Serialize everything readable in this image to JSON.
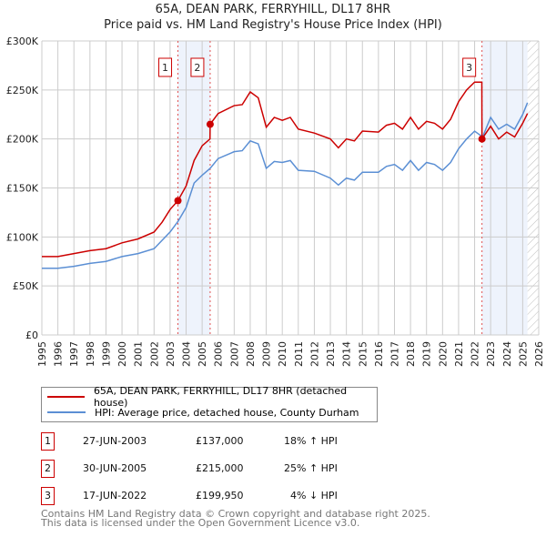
{
  "title": "65A, DEAN PARK, FERRYHILL, DL17 8HR",
  "subtitle": "Price paid vs. HM Land Registry's House Price Index (HPI)",
  "chart_data": {
    "type": "line",
    "title": "65A, DEAN PARK, FERRYHILL, DL17 8HR",
    "subtitle": "Price paid vs. HM Land Registry's House Price Index (HPI)",
    "xlim": [
      1995,
      2026
    ],
    "ylim": [
      0,
      300000
    ],
    "x_ticks": [
      "1995",
      "1996",
      "1997",
      "1998",
      "1999",
      "2000",
      "2001",
      "2002",
      "2003",
      "2004",
      "2005",
      "2006",
      "2007",
      "2008",
      "2009",
      "2010",
      "2011",
      "2012",
      "2013",
      "2014",
      "2015",
      "2016",
      "2017",
      "2018",
      "2019",
      "2020",
      "2021",
      "2022",
      "2023",
      "2024",
      "2025",
      "2026"
    ],
    "y_ticks": [
      {
        "v": 0,
        "label": "£0"
      },
      {
        "v": 50000,
        "label": "£50K"
      },
      {
        "v": 100000,
        "label": "£100K"
      },
      {
        "v": 150000,
        "label": "£150K"
      },
      {
        "v": 200000,
        "label": "£200K"
      },
      {
        "v": 250000,
        "label": "£250K"
      },
      {
        "v": 300000,
        "label": "£300K"
      }
    ],
    "grid": true,
    "legend_position": "below",
    "series": [
      {
        "name": "65A, DEAN PARK, FERRYHILL, DL17 8HR (detached house)",
        "color": "#cc0000",
        "x": [
          1995,
          1996,
          1997,
          1998,
          1999,
          2000,
          2001,
          2002,
          2002.5,
          2003,
          2003.49,
          2004,
          2004.5,
          2005,
          2005.49,
          2005.5,
          2006,
          2007,
          2007.5,
          2008,
          2008.5,
          2009,
          2009.5,
          2010,
          2010.5,
          2011,
          2012,
          2013,
          2013.5,
          2014,
          2014.5,
          2015,
          2016,
          2016.5,
          2017,
          2017.5,
          2018,
          2018.5,
          2019,
          2019.5,
          2020,
          2020.5,
          2021,
          2021.5,
          2022,
          2022.45,
          2022.46,
          2023,
          2023.5,
          2024,
          2024.5,
          2025,
          2025.3
        ],
        "y": [
          80000,
          80000,
          83000,
          86000,
          88000,
          94000,
          98000,
          105000,
          115000,
          128000,
          137000,
          152000,
          178000,
          193000,
          200000,
          215000,
          226000,
          234000,
          235000,
          248000,
          242000,
          212000,
          222000,
          219000,
          222000,
          210000,
          206000,
          200000,
          191000,
          200000,
          198000,
          208000,
          207000,
          214000,
          216000,
          210000,
          222000,
          210000,
          218000,
          216000,
          210000,
          220000,
          238000,
          250000,
          258000,
          258000,
          199950,
          213000,
          200000,
          207000,
          202000,
          216000,
          226000
        ]
      },
      {
        "name": "HPI: Average price, detached house, County Durham",
        "color": "#5b8fd4",
        "x": [
          1995,
          1996,
          1997,
          1998,
          1999,
          2000,
          2001,
          2002,
          2003,
          2003.5,
          2004,
          2004.5,
          2005,
          2005.5,
          2006,
          2007,
          2007.5,
          2008,
          2008.5,
          2009,
          2009.5,
          2010,
          2010.5,
          2011,
          2012,
          2013,
          2013.5,
          2014,
          2014.5,
          2015,
          2016,
          2016.5,
          2017,
          2017.5,
          2018,
          2018.5,
          2019,
          2019.5,
          2020,
          2020.5,
          2021,
          2021.5,
          2022,
          2022.5,
          2023,
          2023.5,
          2024,
          2024.5,
          2025,
          2025.3
        ],
        "y": [
          68000,
          68000,
          70000,
          73000,
          75000,
          80000,
          83000,
          88000,
          105000,
          116000,
          130000,
          155000,
          163000,
          170000,
          180000,
          187000,
          188000,
          198000,
          195000,
          170000,
          177000,
          176000,
          178000,
          168000,
          167000,
          160000,
          153000,
          160000,
          158000,
          166000,
          166000,
          172000,
          174000,
          168000,
          178000,
          168000,
          176000,
          174000,
          168000,
          176000,
          190000,
          200000,
          208000,
          202000,
          222000,
          210000,
          215000,
          210000,
          225000,
          237000
        ]
      }
    ],
    "sales": [
      {
        "n": "1",
        "x": 2003.49,
        "y": 137000
      },
      {
        "n": "2",
        "x": 2005.5,
        "y": 215000
      },
      {
        "n": "3",
        "x": 2022.46,
        "y": 199950
      }
    ],
    "shaded": [
      [
        2003.49,
        2005.5
      ],
      [
        2022.46,
        2025.3
      ]
    ],
    "forecast_hatch_from": 2025.3
  },
  "legend": [
    "65A, DEAN PARK, FERRYHILL, DL17 8HR (detached house)",
    "HPI: Average price, detached house, County Durham"
  ],
  "transactions": [
    {
      "n": "1",
      "date": "27-JUN-2003",
      "price": "£137,000",
      "hpi": "18% ↑ HPI"
    },
    {
      "n": "2",
      "date": "30-JUN-2005",
      "price": "£215,000",
      "hpi": "25% ↑ HPI"
    },
    {
      "n": "3",
      "date": "17-JUN-2022",
      "price": "£199,950",
      "hpi": "4% ↓ HPI"
    }
  ],
  "footer": [
    "Contains HM Land Registry data © Crown copyright and database right 2025.",
    "This data is licensed under the Open Government Licence v3.0."
  ]
}
